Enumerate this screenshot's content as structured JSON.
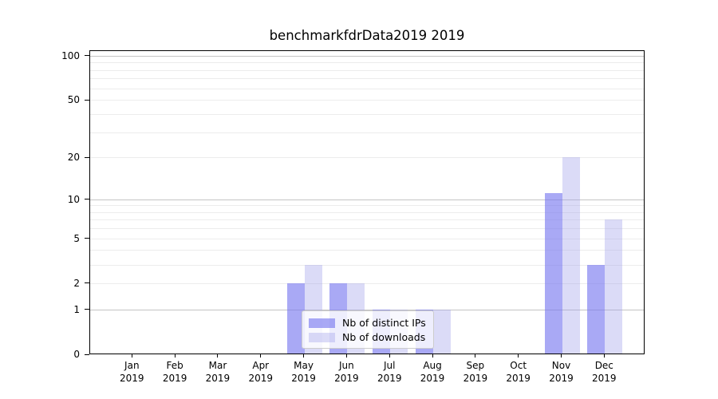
{
  "chart_data": {
    "type": "bar",
    "title": "benchmarkfdrData2019 2019",
    "categories": [
      "Jan\n2019",
      "Feb\n2019",
      "Mar\n2019",
      "Apr\n2019",
      "May\n2019",
      "Jun\n2019",
      "Jul\n2019",
      "Aug\n2019",
      "Sep\n2019",
      "Oct\n2019",
      "Nov\n2019",
      "Dec\n2019"
    ],
    "series": [
      {
        "name": "Nb of distinct IPs",
        "color_on_white": "#a8a8f5",
        "color_rgba": "rgba(120,120,240,0.64)",
        "values": [
          0,
          0,
          0,
          0,
          2,
          2,
          1,
          1,
          0,
          0,
          11,
          3
        ]
      },
      {
        "name": "Nb of downloads",
        "color_on_white": "#dbdbf8",
        "color_rgba": "rgba(160,160,235,0.38)",
        "values": [
          0,
          0,
          0,
          0,
          3,
          2,
          1,
          1,
          0,
          0,
          20,
          7
        ]
      }
    ],
    "xlabel": "",
    "ylabel": "",
    "yscale": "log1p",
    "ylim": [
      0,
      109
    ],
    "ytick_values": [
      0,
      1,
      2,
      5,
      10,
      20,
      50,
      100
    ],
    "ytick_labels": [
      "0",
      "1",
      "2",
      "5",
      "10",
      "20",
      "50",
      "100"
    ],
    "y_major_gridlines": [
      1,
      10,
      100
    ],
    "y_minor_gridlines": [
      2,
      3,
      4,
      5,
      6,
      7,
      8,
      9,
      20,
      30,
      40,
      50,
      60,
      70,
      80,
      90
    ],
    "grid": true,
    "legend_position": "lower center"
  },
  "colors": {
    "background": "#ffffff",
    "axis": "#000000",
    "major_grid": "#c4c4c4",
    "minor_grid": "#ececec",
    "legend_border": "#cccccc",
    "legend_background": "rgba(255,255,255,0.8)",
    "bar_distinct_ips": "#a8a8f5",
    "bar_downloads": "#dbdbf8"
  }
}
